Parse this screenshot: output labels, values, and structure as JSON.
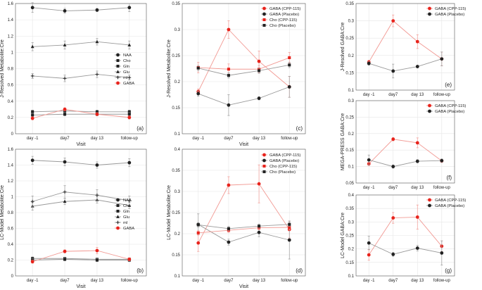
{
  "colors": {
    "red": "#e8231c",
    "black": "#222222",
    "grid": "#e6e6e6",
    "pink": "#f29a94",
    "gray": "#9a9a9a"
  },
  "chart_data": [
    {
      "id": "a",
      "panel_label": "(a)",
      "type": "line",
      "ylabel": "J-Resolved Metabolite:Cre",
      "xlabel": "Visit",
      "categories": [
        "day -1",
        "day7",
        "day 13",
        "follow-up"
      ],
      "ylim": [
        0,
        1.6
      ],
      "yticks": [
        "0",
        "0.2",
        "0.4",
        "0.6",
        "0.8",
        "1",
        "1.2",
        "1.4",
        "1.6"
      ],
      "series": [
        {
          "name": "NAA",
          "marker": "circle",
          "color": "black",
          "values": [
            1.55,
            1.51,
            1.52,
            1.55
          ],
          "err": [
            0.06,
            0.03,
            0.02,
            0.05
          ]
        },
        {
          "name": "Cho",
          "marker": "square",
          "color": "black",
          "values": [
            0.27,
            0.28,
            0.27,
            0.27
          ],
          "err": [
            0.02,
            0.02,
            0.02,
            0.02
          ]
        },
        {
          "name": "Gln",
          "marker": "square",
          "color": "black",
          "values": [
            0.23,
            0.24,
            0.24,
            0.24
          ],
          "err": [
            0.02,
            0.02,
            0.02,
            0.02
          ]
        },
        {
          "name": "Glu",
          "marker": "triangle",
          "color": "black",
          "values": [
            1.07,
            1.09,
            1.13,
            1.09
          ],
          "err": [
            0.05,
            0.05,
            0.04,
            0.05
          ]
        },
        {
          "name": "mI",
          "marker": "plus",
          "color": "black",
          "values": [
            0.71,
            0.68,
            0.73,
            0.69
          ],
          "err": [
            0.03,
            0.04,
            0.04,
            0.03
          ]
        },
        {
          "name": "GABA",
          "marker": "circle",
          "color": "red",
          "values": [
            0.19,
            0.3,
            0.24,
            0.2
          ],
          "err": [
            0.02,
            0.02,
            0.02,
            0.02
          ]
        }
      ]
    },
    {
      "id": "b",
      "panel_label": "(b)",
      "type": "line",
      "ylabel": "LC-Model Metabolite:Cre",
      "xlabel": "Visit",
      "categories": [
        "day -1",
        "day7",
        "day 13",
        "follow-up"
      ],
      "ylim": [
        0,
        1.6
      ],
      "yticks": [
        "0",
        "0.2",
        "0.4",
        "0.6",
        "0.8",
        "1",
        "1.2",
        "1.4",
        "1.6"
      ],
      "series": [
        {
          "name": "NAA",
          "marker": "circle",
          "color": "black",
          "values": [
            1.46,
            1.44,
            1.4,
            1.43
          ],
          "err": [
            0.05,
            0.05,
            0.04,
            0.05
          ]
        },
        {
          "name": "Cho",
          "marker": "square",
          "color": "black",
          "values": [
            0.22,
            0.22,
            0.21,
            0.21
          ],
          "err": [
            0.02,
            0.01,
            0.01,
            0.01
          ]
        },
        {
          "name": "Gln",
          "marker": "square",
          "color": "black",
          "values": [
            0.2,
            0.21,
            0.2,
            0.2
          ],
          "err": [
            0.02,
            0.02,
            0.02,
            0.02
          ]
        },
        {
          "name": "Glu",
          "marker": "triangle",
          "color": "black",
          "values": [
            0.88,
            0.94,
            0.96,
            0.89
          ],
          "err": [
            0.05,
            0.04,
            0.04,
            0.04
          ]
        },
        {
          "name": "mI",
          "marker": "plus",
          "color": "black",
          "values": [
            0.94,
            1.06,
            1.02,
            0.95
          ],
          "err": [
            0.07,
            0.08,
            0.07,
            0.06
          ]
        },
        {
          "name": "GABA",
          "marker": "circle",
          "color": "red",
          "values": [
            0.18,
            0.31,
            0.32,
            0.21
          ],
          "err": [
            0.02,
            0.02,
            0.04,
            0.02
          ]
        }
      ]
    },
    {
      "id": "c",
      "panel_label": "(c)",
      "type": "line",
      "ylabel": "J-Resolved Metabolite:Cre",
      "xlabel": "Visit",
      "categories": [
        "day -1",
        "day7",
        "day 13",
        "follow-up"
      ],
      "ylim": [
        0.1,
        0.35
      ],
      "yticks": [
        "0.1",
        "0.15",
        "0.2",
        "0.25",
        "0.3",
        "0.35"
      ],
      "series": [
        {
          "name": "GABA (CPP-115)",
          "marker": "circle",
          "color": "red",
          "values": [
            0.181,
            0.3,
            0.239,
            0.19
          ],
          "err": [
            0.005,
            0.017,
            0.02,
            0.02
          ]
        },
        {
          "name": "GABA (Placebo)",
          "marker": "circle",
          "color": "black",
          "values": [
            0.177,
            0.155,
            0.168,
            0.19
          ],
          "err": [
            0.005,
            0.02,
            0.003,
            0.02
          ]
        },
        {
          "name": "Cho (CPP-115)",
          "marker": "square",
          "color": "red",
          "values": [
            0.227,
            0.224,
            0.224,
            0.246
          ],
          "err": [
            0.01,
            0.01,
            0.007,
            0.01
          ]
        },
        {
          "name": "Cho (Placebo)",
          "marker": "square",
          "color": "black",
          "values": [
            0.226,
            0.212,
            0.221,
            0.232
          ],
          "err": [
            0.005,
            0.005,
            0.005,
            0.005
          ]
        }
      ]
    },
    {
      "id": "d",
      "panel_label": "(d)",
      "type": "line",
      "ylabel": "LC-Model Metabolite:Cre",
      "xlabel": "Visit",
      "categories": [
        "day -1",
        "day7",
        "day 13",
        "follow-up"
      ],
      "ylim": [
        0.1,
        0.4
      ],
      "yticks": [
        "0.1",
        "0.15",
        "0.2",
        "0.25",
        "0.3",
        "0.35",
        "0.4"
      ],
      "series": [
        {
          "name": "GABA (CPP-115)",
          "marker": "circle",
          "color": "red",
          "values": [
            0.178,
            0.315,
            0.318,
            0.21
          ],
          "err": [
            0.02,
            0.02,
            0.045,
            0.02
          ]
        },
        {
          "name": "GABA (Placebo)",
          "marker": "circle",
          "color": "black",
          "values": [
            0.222,
            0.18,
            0.203,
            0.185
          ],
          "err": [
            0.025,
            0.007,
            0.01,
            0.045
          ]
        },
        {
          "name": "Cho (CPP-115)",
          "marker": "square",
          "color": "red",
          "values": [
            0.202,
            0.208,
            0.214,
            0.215
          ],
          "err": [
            0.005,
            0.005,
            0.005,
            0.005
          ]
        },
        {
          "name": "Cho (Placebo)",
          "marker": "square",
          "color": "black",
          "values": [
            0.221,
            0.212,
            0.218,
            0.222
          ],
          "err": [
            0.005,
            0.005,
            0.005,
            0.005
          ]
        }
      ]
    },
    {
      "id": "e",
      "panel_label": "(e)",
      "type": "line",
      "ylabel": "J-Resolved GABA:Cre",
      "xlabel": "",
      "categories": [
        "day -1",
        "day7",
        "day 13",
        "follow-up"
      ],
      "ylim": [
        0.1,
        0.35
      ],
      "yticks": [
        "0.1",
        "0.15",
        "0.2",
        "0.25",
        "0.3",
        "0.35"
      ],
      "series": [
        {
          "name": "GABA (CPP-115)",
          "marker": "circle",
          "color": "red",
          "values": [
            0.181,
            0.3,
            0.24,
            0.19
          ],
          "err": [
            0.005,
            0.017,
            0.02,
            0.02
          ]
        },
        {
          "name": "GABA (Placebo)",
          "marker": "circle",
          "color": "black",
          "values": [
            0.177,
            0.155,
            0.168,
            0.19
          ],
          "err": [
            0.005,
            0.02,
            0.003,
            0.02
          ]
        }
      ]
    },
    {
      "id": "f",
      "panel_label": "(f)",
      "type": "line",
      "ylabel": "MEGA-PRESS GABA:Cre",
      "xlabel": "",
      "categories": [
        "day -1",
        "day7",
        "day 13",
        "follow-up"
      ],
      "ylim": [
        0.05,
        0.3
      ],
      "yticks": [
        "0.05",
        "0.1",
        "0.15",
        "0.2",
        "0.25",
        "0.3"
      ],
      "series": [
        {
          "name": "GABA (CPP-115)",
          "marker": "circle",
          "color": "red",
          "values": [
            0.108,
            0.183,
            0.172,
            0.117
          ],
          "err": [
            0.005,
            0.005,
            0.015,
            0.005
          ]
        },
        {
          "name": "GABA (Placebo)",
          "marker": "circle",
          "color": "black",
          "values": [
            0.12,
            0.1,
            0.116,
            0.118
          ],
          "err": [
            0.015,
            0.005,
            0.005,
            0.005
          ]
        }
      ]
    },
    {
      "id": "g",
      "panel_label": "(g)",
      "type": "line",
      "ylabel": "LC-Model GABA:Cre",
      "xlabel": "",
      "categories": [
        "day -1",
        "day7",
        "day 13",
        "follow-up"
      ],
      "ylim": [
        0.1,
        0.4
      ],
      "yticks": [
        "0.1",
        "0.15",
        "0.2",
        "0.25",
        "0.3",
        "0.35",
        "0.4"
      ],
      "series": [
        {
          "name": "GABA (CPP-115)",
          "marker": "circle",
          "color": "red",
          "values": [
            0.178,
            0.315,
            0.318,
            0.21
          ],
          "err": [
            0.02,
            0.02,
            0.045,
            0.02
          ]
        },
        {
          "name": "GABA (Placebo)",
          "marker": "circle",
          "color": "black",
          "values": [
            0.222,
            0.18,
            0.203,
            0.185
          ],
          "err": [
            0.025,
            0.007,
            0.01,
            0.045
          ]
        }
      ]
    }
  ]
}
